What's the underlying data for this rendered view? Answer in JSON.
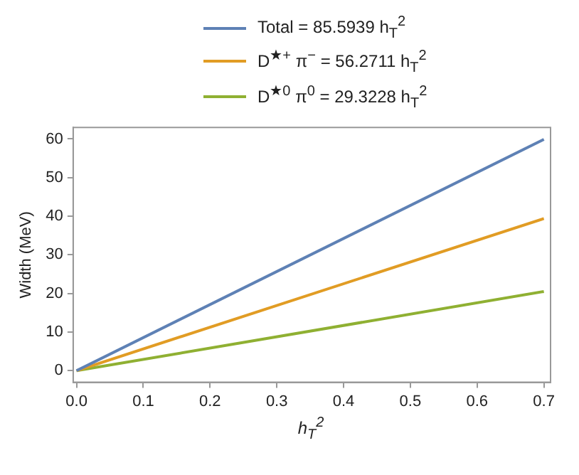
{
  "chart_data": {
    "type": "line",
    "x": [
      0,
      0.7
    ],
    "series": [
      {
        "name": "Total = 85.5939 h$_{T}$$^{2}$",
        "color": "#5e81b5",
        "values": [
          0,
          59.9
        ]
      },
      {
        "name": "D$^{★+}$ π$^{−}$ = 56.2711 h$_{T}$$^{2}$",
        "color": "#e19c24",
        "values": [
          0,
          39.4
        ]
      },
      {
        "name": "D$^{★0}$ π$^{0}$ = 29.3228 h$_{T}$$^{2}$",
        "color": "#8fb032",
        "values": [
          0,
          20.5
        ]
      }
    ],
    "xlabel": "h$_{T}$$^{2}$",
    "ylabel": "Width (MeV)",
    "xlim": [
      -0.005,
      0.71
    ],
    "ylim": [
      -3,
      63
    ],
    "xticks": [
      {
        "value": 0,
        "label": "0.0"
      },
      {
        "value": 0.1,
        "label": "0.1"
      },
      {
        "value": 0.2,
        "label": "0.2"
      },
      {
        "value": 0.3,
        "label": "0.3"
      },
      {
        "value": 0.4,
        "label": "0.4"
      },
      {
        "value": 0.5,
        "label": "0.5"
      },
      {
        "value": 0.6,
        "label": "0.6"
      },
      {
        "value": 0.7,
        "label": "0.7"
      }
    ],
    "yticks": [
      0,
      10,
      20,
      30,
      40,
      50,
      60
    ],
    "grid": false,
    "legend": "top",
    "marker": "none",
    "line_style": "solid"
  }
}
